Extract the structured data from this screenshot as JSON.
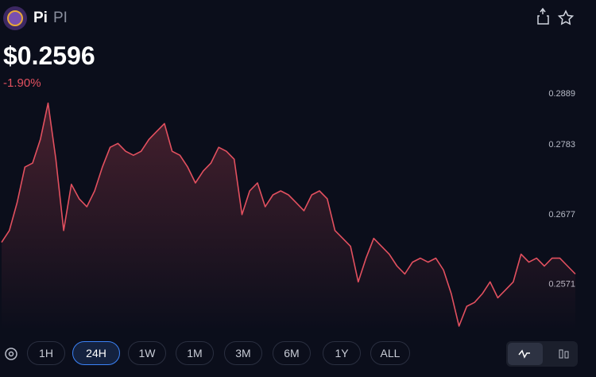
{
  "header": {
    "name": "Pi",
    "symbol": "PI"
  },
  "price": "$0.2596",
  "change": "-1.90%",
  "chart_data": {
    "type": "line",
    "color": "#e2505f",
    "ylim": [
      0.2502,
      0.2889
    ],
    "yticks": [
      0.2889,
      0.2783,
      0.2677,
      0.2571
    ],
    "values": [
      0.2635,
      0.2653,
      0.2695,
      0.2749,
      0.2755,
      0.2791,
      0.2846,
      0.2761,
      0.2653,
      0.2723,
      0.2701,
      0.2689,
      0.2713,
      0.2749,
      0.2779,
      0.2785,
      0.2773,
      0.2767,
      0.2773,
      0.2791,
      0.2803,
      0.2815,
      0.2773,
      0.2767,
      0.2749,
      0.2725,
      0.2743,
      0.2755,
      0.2779,
      0.2773,
      0.2761,
      0.2677,
      0.2713,
      0.2725,
      0.2689,
      0.2707,
      0.2713,
      0.2707,
      0.2695,
      0.2683,
      0.2707,
      0.2713,
      0.2701,
      0.2653,
      0.2641,
      0.2629,
      0.2575,
      0.2611,
      0.2641,
      0.2629,
      0.2617,
      0.2599,
      0.2587,
      0.2605,
      0.2611,
      0.2605,
      0.2611,
      0.2593,
      0.2557,
      0.2508,
      0.2538,
      0.2544,
      0.2557,
      0.2575,
      0.2551,
      0.2563,
      0.2575,
      0.2617,
      0.2605,
      0.2611,
      0.2599,
      0.2611,
      0.2611,
      0.2599,
      0.2587
    ]
  },
  "ranges": [
    "1H",
    "24H",
    "1W",
    "1M",
    "3M",
    "6M",
    "1Y",
    "ALL"
  ],
  "selected_range": 1
}
